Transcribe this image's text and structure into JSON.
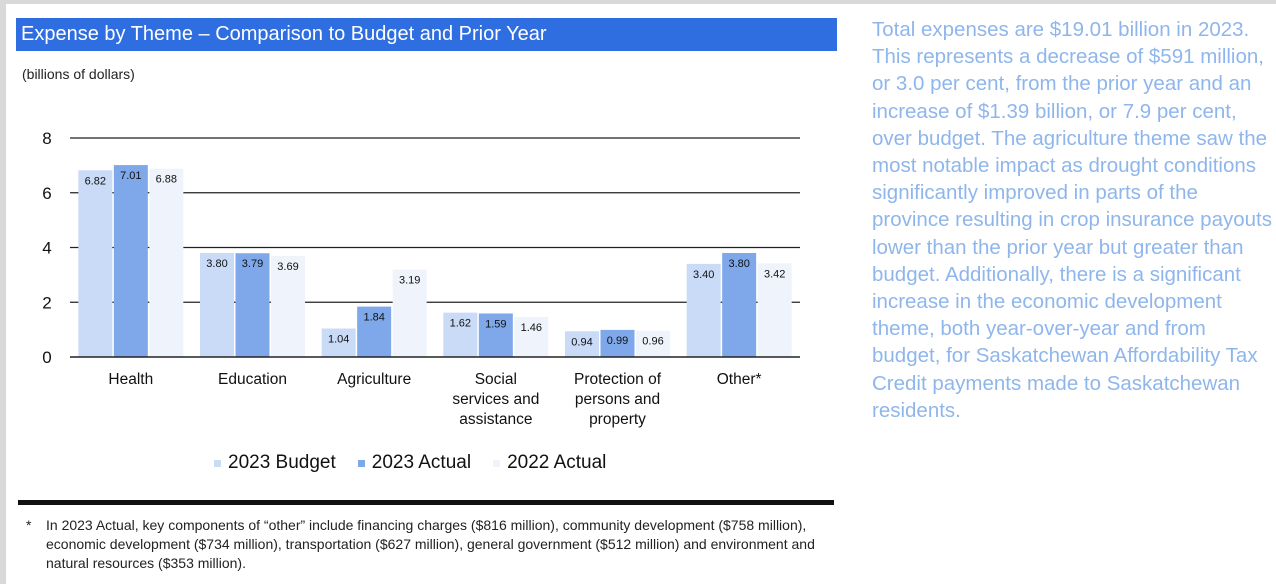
{
  "title": "Expense by Theme – Comparison to Budget and Prior Year",
  "units_label": "(billions of dollars)",
  "side_text": "Total expenses are $19.01 billion in 2023. This represents a decrease of $591 million, or 3.0 per cent, from the prior year and an increase of $1.39 billion, or 7.9 per cent, over budget. The agriculture theme saw the most notable impact as drought conditions significantly improved in parts of the province resulting in crop insurance payouts lower than the prior year but greater than budget. Additionally, there is a significant increase in the economic development theme, both year-over-year and from budget, for Saskatchewan Affordability Tax Credit payments made to Saskatchewan residents.",
  "footnote": {
    "mark": "*",
    "text": "In 2023 Actual, key components of “other” include financing charges ($816 million), community development ($758 million), economic development ($734 million), transportation ($627 million), general government ($512 million) and environment and natural resources ($353 million)."
  },
  "colors": {
    "title_bar": "#2f6ee0",
    "side_text": "#8fb6ec",
    "series": [
      "#c9dbf6",
      "#7ea8ea",
      "#eef3fc"
    ]
  },
  "chart_data": {
    "type": "bar",
    "categories": [
      [
        "Health"
      ],
      [
        "Education"
      ],
      [
        "Agriculture"
      ],
      [
        "Social",
        "services and",
        "assistance"
      ],
      [
        "Protection of",
        "persons and",
        "property"
      ],
      [
        "Other*"
      ]
    ],
    "series": [
      {
        "name": "2023 Budget",
        "values": [
          6.82,
          3.8,
          1.04,
          1.62,
          0.94,
          3.4
        ],
        "labels": [
          "6.82",
          "3.80",
          "1.04",
          "1.62",
          "0.94",
          "3.40"
        ]
      },
      {
        "name": "2023 Actual",
        "values": [
          7.01,
          3.79,
          1.84,
          1.59,
          0.99,
          3.8
        ],
        "labels": [
          "7.01",
          "3.79",
          "1.84",
          "1.59",
          "0.99",
          "3.80"
        ]
      },
      {
        "name": "2022 Actual",
        "values": [
          6.88,
          3.69,
          3.19,
          1.46,
          0.96,
          3.42
        ],
        "labels": [
          "6.88",
          "3.69",
          "3.19",
          "1.46",
          "0.96",
          "3.42"
        ]
      }
    ],
    "yticks": [
      "0",
      "2",
      "4",
      "6",
      "8"
    ],
    "ylim": [
      0,
      8
    ],
    "grid": true,
    "legend": "bottom"
  }
}
